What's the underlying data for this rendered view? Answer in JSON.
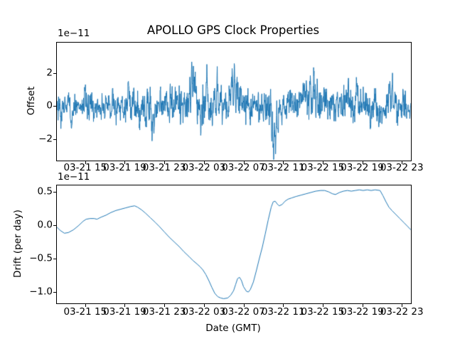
{
  "figure": {
    "title": "APOLLO GPS Clock Properties",
    "background": "#ffffff",
    "spine_color": "#000000",
    "line_color": "#1f77b4"
  },
  "chart_data": [
    {
      "type": "line",
      "title": "APOLLO GPS Clock Properties",
      "ylabel": "Offset",
      "xlabel": "",
      "y_offset_text": "1e−11",
      "legend": "none",
      "grid": false,
      "line_color": "#1f77b4",
      "ylim": [
        -3.31,
        3.83
      ],
      "y_ticks": [
        2,
        0,
        -2
      ],
      "y_tick_labels": [
        "2",
        "0",
        "−2"
      ],
      "xlim_hours": [
        12.14,
        47.92
      ],
      "x_tick_hours": [
        15,
        19,
        23,
        27,
        31,
        35,
        39,
        43,
        47
      ],
      "x_tick_labels": [
        "03-21 15",
        "03-21 19",
        "03-21 23",
        "03-22 03",
        "03-22 07",
        "03-22 11",
        "03-22 15",
        "03-22 19",
        "03-22 23"
      ],
      "series": {
        "kind": "noisy",
        "units": "1e-11",
        "n": 1500,
        "seed": 20240322,
        "ar": 0.3,
        "spike_width_h": 0.12,
        "std_envelope": [
          [
            12.1,
            0.4
          ],
          [
            14,
            0.38
          ],
          [
            16,
            0.4
          ],
          [
            18,
            0.43
          ],
          [
            20,
            0.46
          ],
          [
            22,
            0.48
          ],
          [
            23.5,
            0.52
          ],
          [
            25,
            0.55
          ],
          [
            26.5,
            0.55
          ],
          [
            28,
            0.5
          ],
          [
            29.5,
            0.55
          ],
          [
            31,
            0.5
          ],
          [
            32.5,
            0.48
          ],
          [
            34,
            0.55
          ],
          [
            35.5,
            0.45
          ],
          [
            37,
            0.52
          ],
          [
            38.5,
            0.55
          ],
          [
            40,
            0.46
          ],
          [
            41.5,
            0.48
          ],
          [
            43,
            0.46
          ],
          [
            44.5,
            0.42
          ],
          [
            46,
            0.48
          ],
          [
            47.92,
            0.45
          ]
        ],
        "mean_drift": [
          [
            12.1,
            0.2
          ],
          [
            13,
            0.05
          ],
          [
            16,
            0.0
          ],
          [
            20,
            0.0
          ],
          [
            24,
            -0.05
          ],
          [
            26,
            0.05
          ],
          [
            28,
            0.0
          ],
          [
            30,
            0.15
          ],
          [
            31.5,
            0.0
          ],
          [
            33,
            -0.2
          ],
          [
            34,
            -0.3
          ],
          [
            35,
            0.0
          ],
          [
            37.5,
            0.1
          ],
          [
            39,
            0.0
          ],
          [
            42,
            0.0
          ],
          [
            44,
            0.05
          ],
          [
            45.3,
            -0.15
          ],
          [
            46,
            0.05
          ],
          [
            47.92,
            0.1
          ]
        ],
        "spikes": [
          [
            12.55,
            -1.0
          ],
          [
            13.6,
            -1.1
          ],
          [
            15.0,
            0.9
          ],
          [
            15.9,
            -1.2
          ],
          [
            17.8,
            0.8
          ],
          [
            19.4,
            0.9
          ],
          [
            20.5,
            -1.0
          ],
          [
            21.75,
            -1.6
          ],
          [
            21.95,
            -1.2
          ],
          [
            23.2,
            0.9
          ],
          [
            25.55,
            1.4
          ],
          [
            25.78,
            2.9
          ],
          [
            25.95,
            2.0
          ],
          [
            26.15,
            1.4
          ],
          [
            26.7,
            -1.4
          ],
          [
            27.3,
            1.9
          ],
          [
            28.35,
            1.7
          ],
          [
            28.75,
            1.2
          ],
          [
            29.85,
            1.9
          ],
          [
            30.1,
            2.0
          ],
          [
            30.35,
            1.4
          ],
          [
            31.7,
            -1.2
          ],
          [
            33.9,
            -1.5
          ],
          [
            34.05,
            -2.5
          ],
          [
            34.25,
            -1.9
          ],
          [
            34.45,
            -1.2
          ],
          [
            35.5,
            0.9
          ],
          [
            37.35,
            1.6
          ],
          [
            37.75,
            1.4
          ],
          [
            38.1,
            1.7
          ],
          [
            38.45,
            1.4
          ],
          [
            39.1,
            1.1
          ],
          [
            41.6,
            1.4
          ],
          [
            42.45,
            0.9
          ],
          [
            43.8,
            -1.2
          ],
          [
            44.65,
            -0.9
          ],
          [
            45.75,
            1.8
          ],
          [
            46.05,
            1.2
          ],
          [
            46.55,
            -1.1
          ]
        ],
        "observed_extremes": {
          "max": 3.5,
          "min": -2.8
        }
      }
    },
    {
      "type": "line",
      "title": "",
      "ylabel": "Drift (per day)",
      "xlabel": "Date (GMT)",
      "y_offset_text": "1e−11",
      "legend": "none",
      "grid": false,
      "line_color": "#1f77b4",
      "ylim": [
        -1.17,
        0.596
      ],
      "y_ticks": [
        0.5,
        0.0,
        -0.5,
        -1.0
      ],
      "y_tick_labels": [
        "0.5",
        "0.0",
        "−0.5",
        "−1.0"
      ],
      "xlim_hours": [
        12.14,
        47.92
      ],
      "x_tick_hours": [
        15,
        19,
        23,
        27,
        31,
        35,
        39,
        43,
        47
      ],
      "x_tick_labels": [
        "03-21 15",
        "03-21 19",
        "03-21 23",
        "03-22 03",
        "03-22 07",
        "03-22 11",
        "03-22 15",
        "03-22 19",
        "03-22 23"
      ],
      "series": {
        "kind": "points",
        "units": "1e-11",
        "points": [
          [
            12.14,
            -0.03
          ],
          [
            12.5,
            -0.08
          ],
          [
            12.9,
            -0.12
          ],
          [
            13.3,
            -0.11
          ],
          [
            13.8,
            -0.07
          ],
          [
            14.3,
            -0.01
          ],
          [
            14.8,
            0.06
          ],
          [
            15.1,
            0.09
          ],
          [
            15.5,
            0.1
          ],
          [
            15.9,
            0.1
          ],
          [
            16.2,
            0.09
          ],
          [
            16.6,
            0.12
          ],
          [
            17.1,
            0.15
          ],
          [
            17.6,
            0.19
          ],
          [
            18.1,
            0.22
          ],
          [
            18.6,
            0.24
          ],
          [
            19.1,
            0.26
          ],
          [
            19.6,
            0.28
          ],
          [
            20.0,
            0.29
          ],
          [
            20.3,
            0.27
          ],
          [
            20.7,
            0.23
          ],
          [
            21.1,
            0.18
          ],
          [
            21.6,
            0.11
          ],
          [
            22.1,
            0.04
          ],
          [
            22.5,
            -0.02
          ],
          [
            23.0,
            -0.1
          ],
          [
            23.5,
            -0.18
          ],
          [
            24.0,
            -0.25
          ],
          [
            24.5,
            -0.32
          ],
          [
            25.0,
            -0.4
          ],
          [
            25.5,
            -0.47
          ],
          [
            25.9,
            -0.53
          ],
          [
            26.3,
            -0.58
          ],
          [
            26.6,
            -0.62
          ],
          [
            26.9,
            -0.67
          ],
          [
            27.2,
            -0.74
          ],
          [
            27.5,
            -0.83
          ],
          [
            27.8,
            -0.93
          ],
          [
            28.1,
            -1.02
          ],
          [
            28.4,
            -1.07
          ],
          [
            28.7,
            -1.09
          ],
          [
            29.0,
            -1.1
          ],
          [
            29.4,
            -1.09
          ],
          [
            29.7,
            -1.05
          ],
          [
            30.0,
            -0.98
          ],
          [
            30.2,
            -0.89
          ],
          [
            30.4,
            -0.8
          ],
          [
            30.6,
            -0.78
          ],
          [
            30.8,
            -0.83
          ],
          [
            31.0,
            -0.92
          ],
          [
            31.3,
            -0.99
          ],
          [
            31.5,
            -1.0
          ],
          [
            31.7,
            -0.96
          ],
          [
            32.0,
            -0.85
          ],
          [
            32.3,
            -0.68
          ],
          [
            32.6,
            -0.5
          ],
          [
            32.9,
            -0.33
          ],
          [
            33.2,
            -0.13
          ],
          [
            33.5,
            0.08
          ],
          [
            33.8,
            0.27
          ],
          [
            34.0,
            0.35
          ],
          [
            34.2,
            0.36
          ],
          [
            34.4,
            0.32
          ],
          [
            34.6,
            0.29
          ],
          [
            34.9,
            0.31
          ],
          [
            35.2,
            0.36
          ],
          [
            35.5,
            0.39
          ],
          [
            35.9,
            0.41
          ],
          [
            36.3,
            0.43
          ],
          [
            36.8,
            0.45
          ],
          [
            37.3,
            0.47
          ],
          [
            37.8,
            0.49
          ],
          [
            38.3,
            0.51
          ],
          [
            38.8,
            0.52
          ],
          [
            39.2,
            0.52
          ],
          [
            39.6,
            0.5
          ],
          [
            40.0,
            0.47
          ],
          [
            40.3,
            0.46
          ],
          [
            40.7,
            0.49
          ],
          [
            41.1,
            0.51
          ],
          [
            41.5,
            0.52
          ],
          [
            41.9,
            0.51
          ],
          [
            42.3,
            0.52
          ],
          [
            42.7,
            0.53
          ],
          [
            43.1,
            0.52
          ],
          [
            43.5,
            0.53
          ],
          [
            43.9,
            0.52
          ],
          [
            44.3,
            0.53
          ],
          [
            44.8,
            0.52
          ],
          [
            45.1,
            0.44
          ],
          [
            45.4,
            0.35
          ],
          [
            45.7,
            0.27
          ],
          [
            46.0,
            0.22
          ],
          [
            46.4,
            0.16
          ],
          [
            46.8,
            0.1
          ],
          [
            47.2,
            0.04
          ],
          [
            47.6,
            -0.02
          ],
          [
            47.92,
            -0.07
          ]
        ]
      }
    }
  ]
}
